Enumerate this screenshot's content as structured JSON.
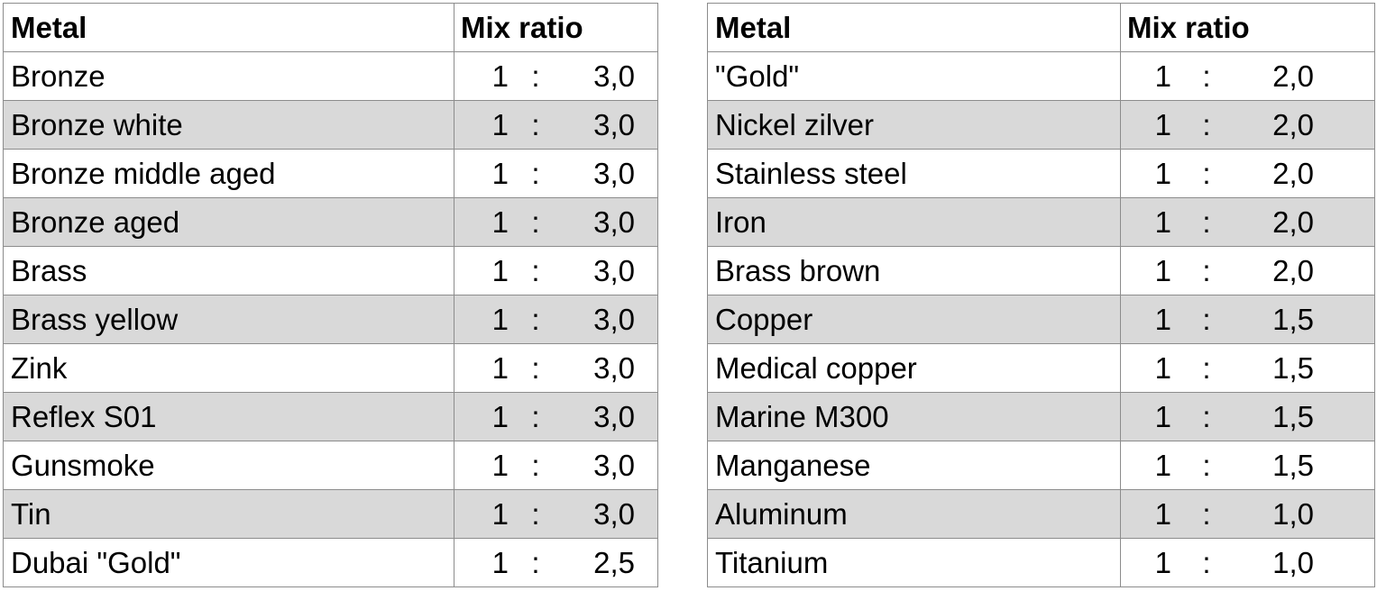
{
  "header": {
    "metal": "Metal",
    "mix_ratio": "Mix ratio"
  },
  "separator": ":",
  "left_table": [
    {
      "metal": "Bronze",
      "a": "1",
      "b": "3,0"
    },
    {
      "metal": "Bronze white",
      "a": "1",
      "b": "3,0"
    },
    {
      "metal": "Bronze middle aged",
      "a": "1",
      "b": "3,0"
    },
    {
      "metal": "Bronze aged",
      "a": "1",
      "b": "3,0"
    },
    {
      "metal": "Brass",
      "a": "1",
      "b": "3,0"
    },
    {
      "metal": "Brass yellow",
      "a": "1",
      "b": "3,0"
    },
    {
      "metal": "Zink",
      "a": "1",
      "b": "3,0"
    },
    {
      "metal": "Reflex S01",
      "a": "1",
      "b": "3,0"
    },
    {
      "metal": "Gunsmoke",
      "a": "1",
      "b": "3,0"
    },
    {
      "metal": "Tin",
      "a": "1",
      "b": "3,0"
    },
    {
      "metal": "Dubai \"Gold\"",
      "a": "1",
      "b": "2,5"
    }
  ],
  "right_table": [
    {
      "metal": "\"Gold\"",
      "a": "1",
      "b": "2,0"
    },
    {
      "metal": "Nickel zilver",
      "a": "1",
      "b": "2,0"
    },
    {
      "metal": "Stainless steel",
      "a": "1",
      "b": "2,0"
    },
    {
      "metal": "Iron",
      "a": "1",
      "b": "2,0"
    },
    {
      "metal": "Brass brown",
      "a": "1",
      "b": "2,0"
    },
    {
      "metal": "Copper",
      "a": "1",
      "b": "1,5"
    },
    {
      "metal": "Medical copper",
      "a": "1",
      "b": "1,5"
    },
    {
      "metal": "Marine M300",
      "a": "1",
      "b": "1,5"
    },
    {
      "metal": "Manganese",
      "a": "1",
      "b": "1,5"
    },
    {
      "metal": "Aluminum",
      "a": "1",
      "b": "1,0"
    },
    {
      "metal": "Titanium",
      "a": "1",
      "b": "1,0"
    }
  ]
}
